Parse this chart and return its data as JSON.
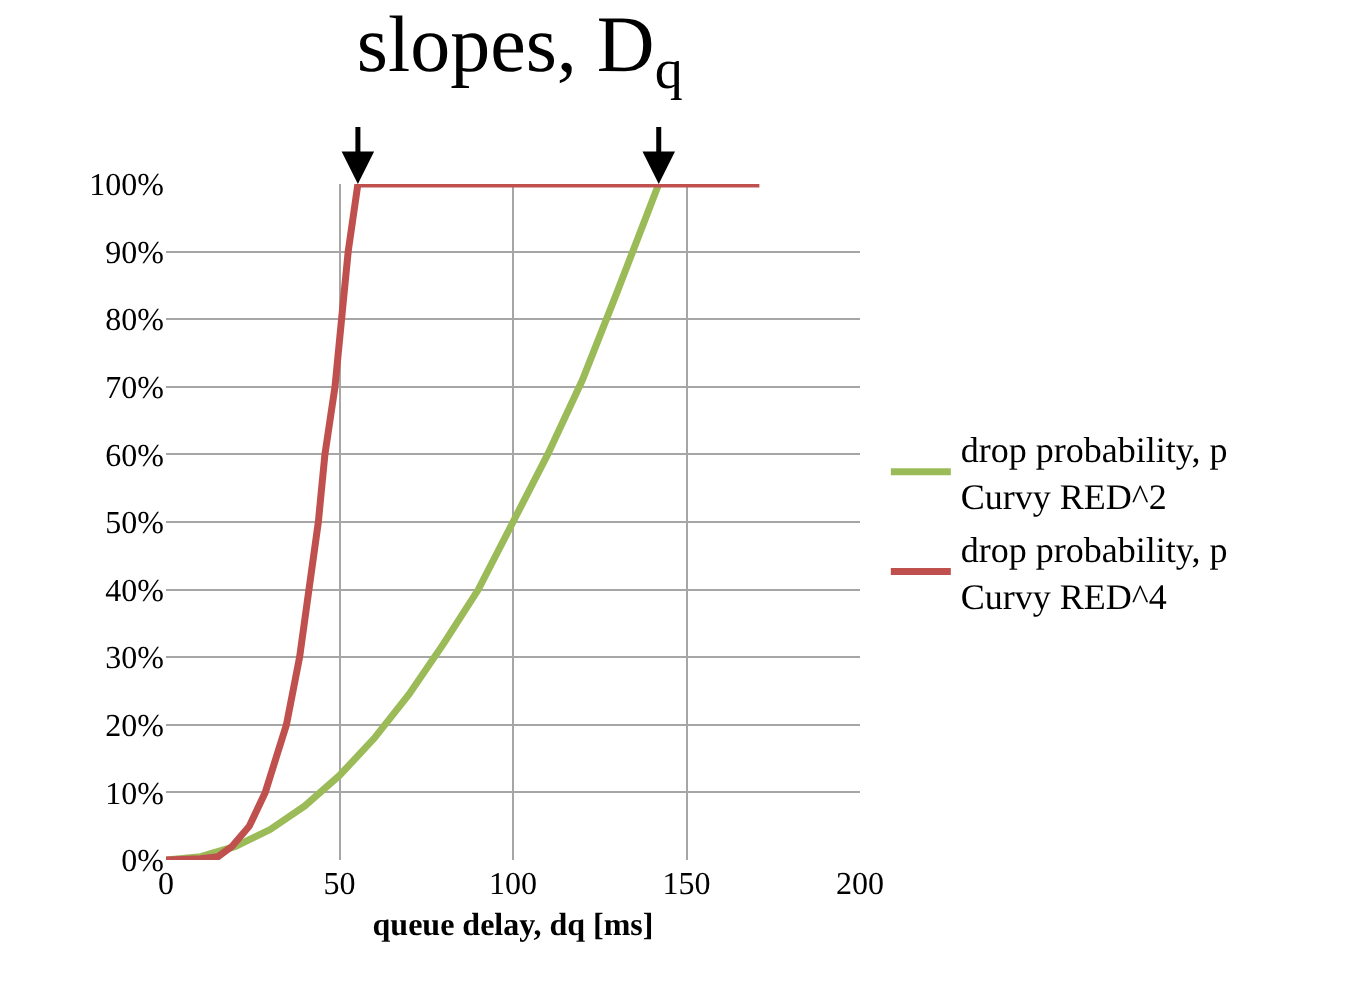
{
  "chart_data": {
    "type": "line",
    "title": "slopes, D$_{q}$",
    "xlabel": "queue delay, dq [ms]",
    "xlim": [
      0,
      200
    ],
    "xticks": [
      0,
      50,
      100,
      150,
      200
    ],
    "ylim": [
      0,
      100
    ],
    "yticks": [
      {
        "value": 0,
        "label": "0%"
      },
      {
        "value": 10,
        "label": "10%"
      },
      {
        "value": 20,
        "label": "20%"
      },
      {
        "value": 30,
        "label": "30%"
      },
      {
        "value": 40,
        "label": "40%"
      },
      {
        "value": 50,
        "label": "50%"
      },
      {
        "value": 60,
        "label": "60%"
      },
      {
        "value": 70,
        "label": "70%"
      },
      {
        "value": 80,
        "label": "80%"
      },
      {
        "value": 90,
        "label": "90%"
      },
      {
        "value": 100,
        "label": "100%"
      }
    ],
    "grid": true,
    "legend": "right",
    "marker": "none",
    "line_style": "solid",
    "series": [
      {
        "name": "drop probability, p\nCurvy RED^2",
        "color": "#9bbb59",
        "x": [
          0,
          10,
          20,
          30,
          40,
          50,
          60,
          70,
          80,
          90,
          100,
          110,
          120,
          130,
          142
        ],
        "values": [
          0,
          0.5,
          2,
          4.5,
          8,
          12.5,
          18,
          24.5,
          32,
          40,
          50,
          60,
          71,
          84,
          100
        ]
      },
      {
        "name": "drop probability, p\nCurvy RED^4",
        "color": "#c0504d",
        "x": [
          0,
          10,
          15,
          19,
          24,
          28.6,
          34.7,
          38.5,
          41.2,
          43.9,
          45.8,
          48.7,
          50.6,
          52.5,
          55.3,
          171
        ],
        "values": [
          0,
          0.2,
          0.5,
          2,
          5,
          10,
          20,
          30,
          40,
          50,
          60,
          70,
          80,
          90,
          100,
          100
        ]
      }
    ]
  }
}
